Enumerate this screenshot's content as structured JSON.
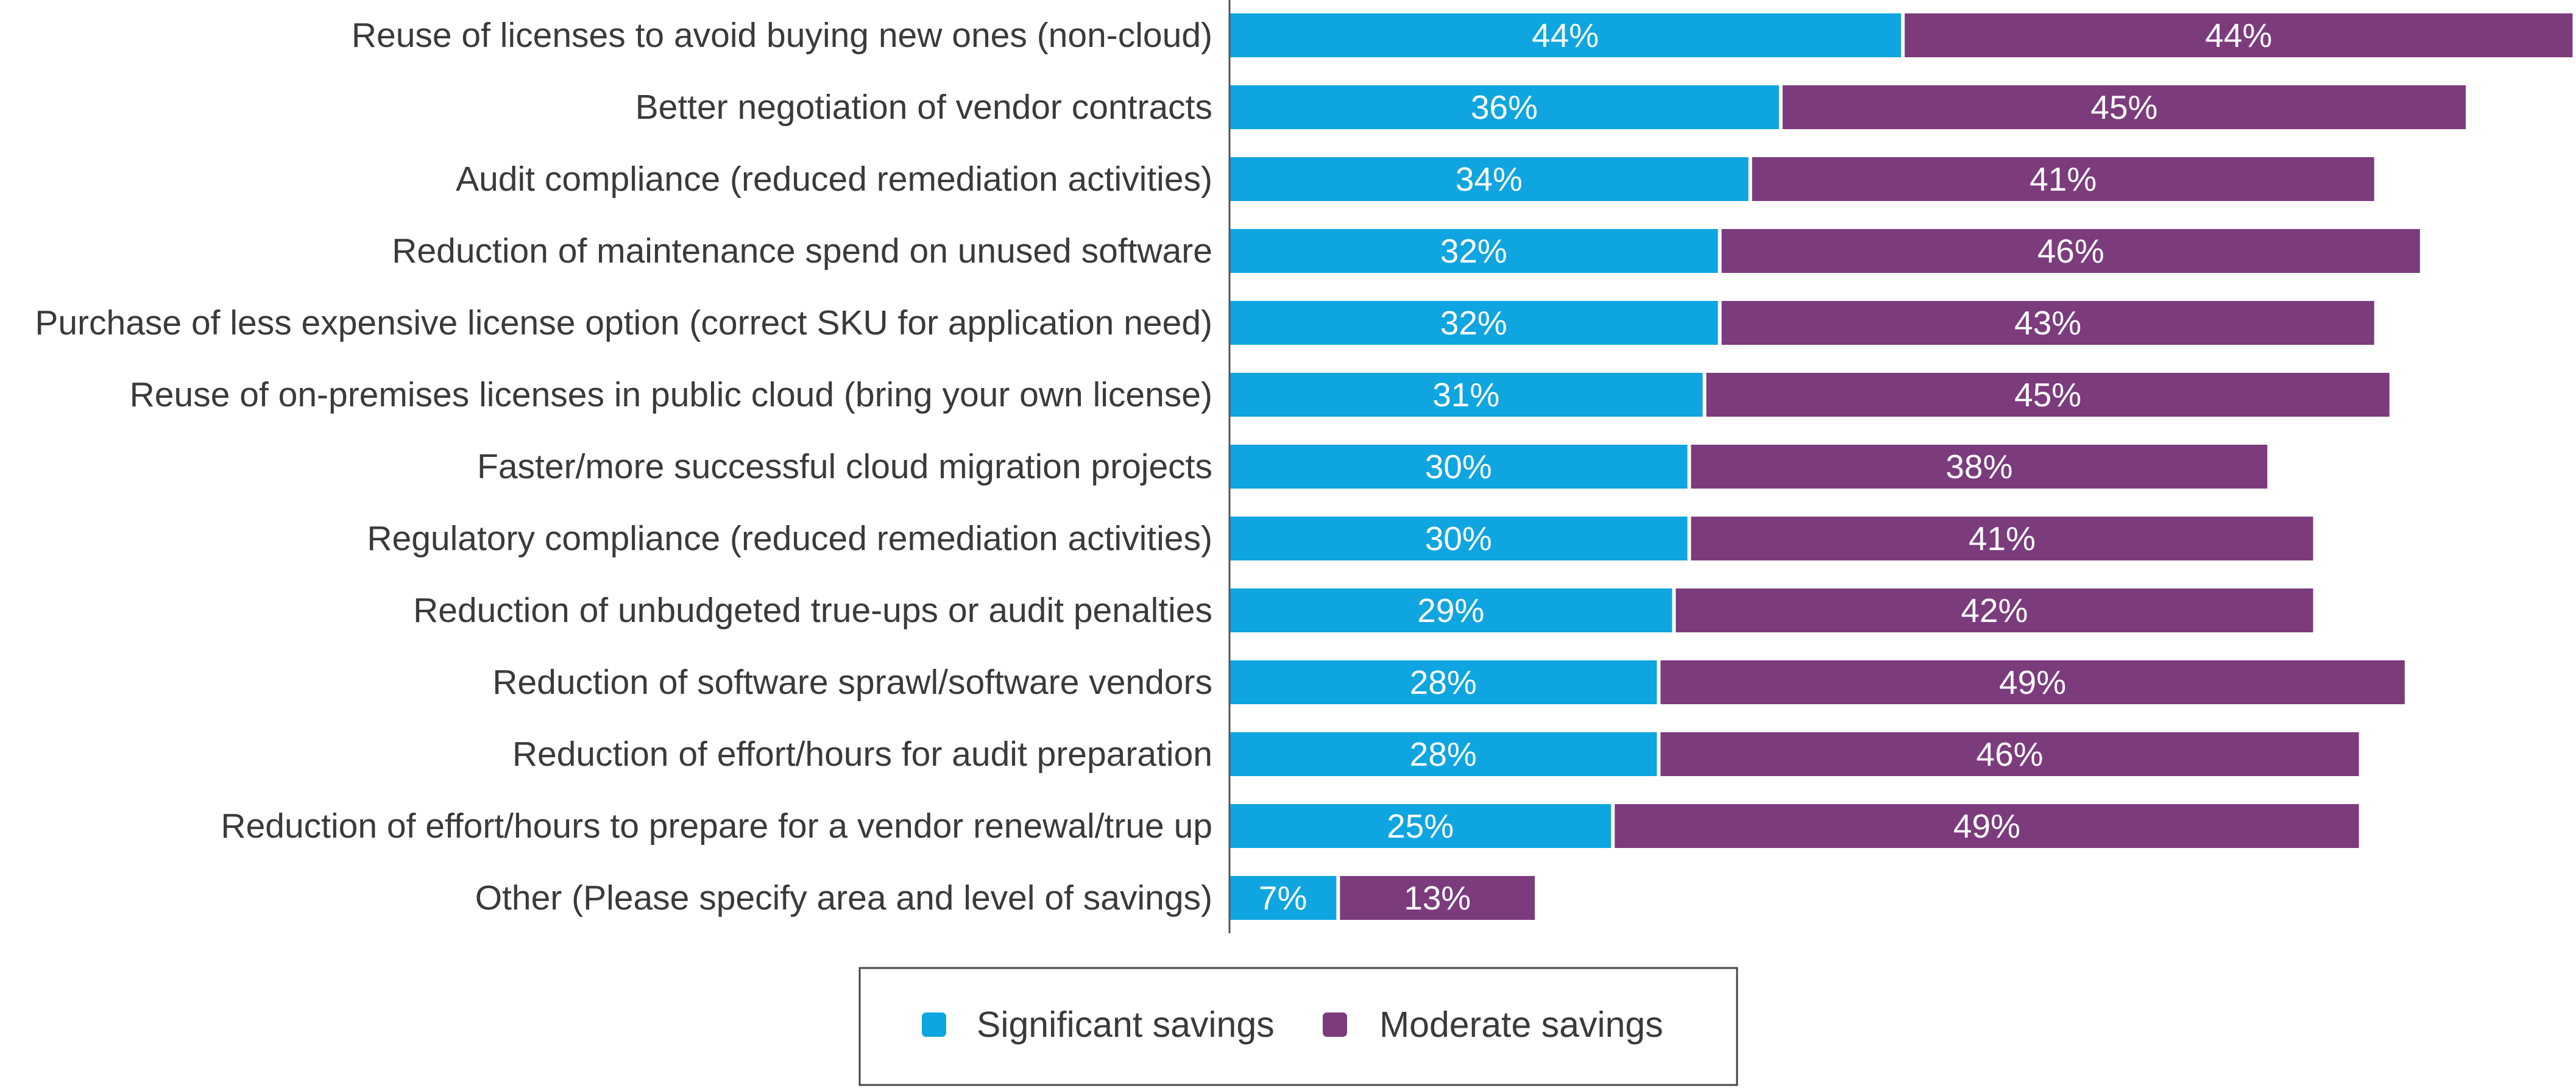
{
  "chart_data": {
    "type": "bar",
    "orientation": "horizontal",
    "stacked": true,
    "title": "",
    "xlabel": "",
    "ylabel": "",
    "grid": false,
    "legend_position": "bottom",
    "value_suffix": "%",
    "categories": [
      "Reuse of licenses to avoid buying new ones (non-cloud)",
      "Better negotiation of vendor contracts",
      "Audit compliance (reduced remediation activities)",
      "Reduction of maintenance spend on unused software",
      "Purchase of less expensive license option (correct SKU for application need)",
      "Reuse of on-premises licenses in public cloud (bring your own license)",
      "Faster/more successful cloud migration projects",
      "Regulatory compliance (reduced remediation activities)",
      "Reduction of unbudgeted true-ups or audit penalties",
      "Reduction of software sprawl/software vendors",
      "Reduction of effort/hours for audit preparation",
      "Reduction of effort/hours to prepare for a vendor renewal/true up",
      "Other (Please specify area and level of savings)"
    ],
    "series": [
      {
        "name": "Significant savings",
        "color": "#0ea5e0",
        "values": [
          44,
          36,
          34,
          32,
          32,
          31,
          30,
          30,
          29,
          28,
          28,
          25,
          7
        ]
      },
      {
        "name": "Moderate savings",
        "color": "#7b3b7d",
        "values": [
          44,
          45,
          41,
          46,
          43,
          45,
          38,
          41,
          42,
          49,
          46,
          49,
          13
        ]
      }
    ]
  }
}
